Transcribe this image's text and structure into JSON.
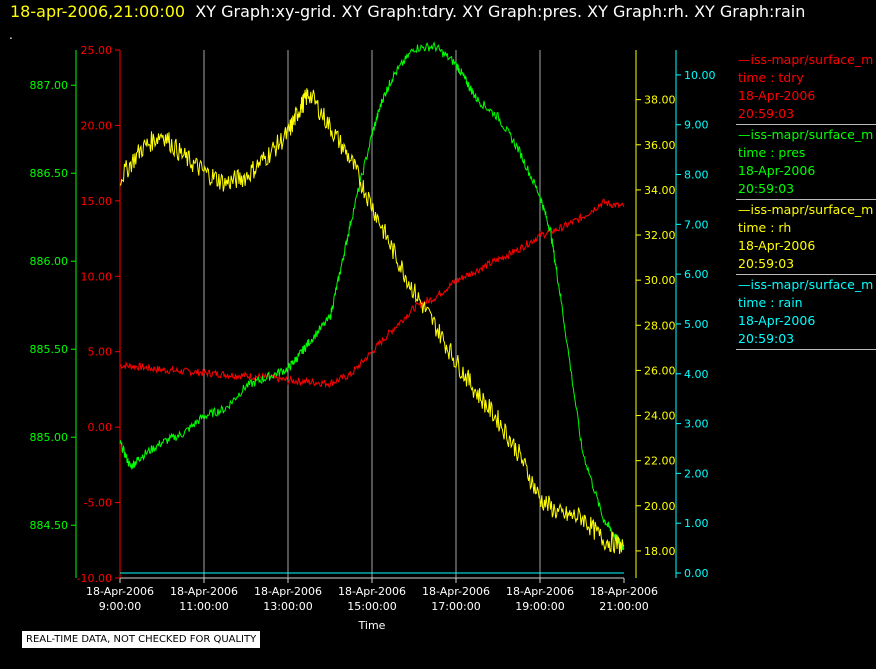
{
  "header": {
    "timestamp": "18-apr-2006,21:00:00",
    "graphs": "XY Graph:xy-grid.  XY Graph:tdry.  XY Graph:pres.  XY Graph:rh.  XY Graph:rain",
    "dot": "."
  },
  "colors": {
    "tdry": "#ff0000",
    "pres": "#00ff00",
    "rh": "#ffff00",
    "rain": "#00ffff",
    "grid": "#d0d0d0"
  },
  "legend": [
    {
      "series": "—iss-mapr/surface_m",
      "var": "time : tdry",
      "date": "18-Apr-2006",
      "time": "20:59:03",
      "color": "#ff0000"
    },
    {
      "series": "—iss-mapr/surface_m",
      "var": "time : pres",
      "date": "18-Apr-2006",
      "time": "20:59:03",
      "color": "#00ff00"
    },
    {
      "series": "—iss-mapr/surface_m",
      "var": "time : rh",
      "date": "18-Apr-2006",
      "time": "20:59:03",
      "color": "#ffff00"
    },
    {
      "series": "—iss-mapr/surface_m",
      "var": "time : rain",
      "date": "18-Apr-2006",
      "time": "20:59:03",
      "color": "#00ffff"
    }
  ],
  "footer_note": "REAL-TIME DATA, NOT CHECKED FOR QUALITY",
  "chart_data": {
    "type": "line",
    "xlabel": "Time",
    "x_ticks": [
      [
        "18-Apr-2006",
        "9:00:00"
      ],
      [
        "18-Apr-2006",
        "11:00:00"
      ],
      [
        "18-Apr-2006",
        "13:00:00"
      ],
      [
        "18-Apr-2006",
        "15:00:00"
      ],
      [
        "18-Apr-2006",
        "17:00:00"
      ],
      [
        "18-Apr-2006",
        "19:00:00"
      ],
      [
        "18-Apr-2006",
        "21:00:00"
      ]
    ],
    "x_range_hours": [
      9,
      21
    ],
    "axes": {
      "pres": {
        "ticks": [
          "884.50",
          "885.00",
          "885.50",
          "886.00",
          "886.50",
          "887.00"
        ],
        "range": [
          884.2,
          887.2
        ]
      },
      "tdry": {
        "ticks": [
          "-10.00",
          "-5.00",
          "0.00",
          "5.00",
          "10.00",
          "15.00",
          "20.00",
          "25.00"
        ],
        "range": [
          -10,
          25
        ]
      },
      "rh": {
        "ticks": [
          "18.00",
          "20.00",
          "22.00",
          "24.00",
          "26.00",
          "28.00",
          "30.00",
          "32.00",
          "34.00",
          "36.00",
          "38.00"
        ],
        "range": [
          16.8,
          40.2
        ]
      },
      "rain": {
        "ticks": [
          "0.00",
          "1.00",
          "2.00",
          "3.00",
          "4.00",
          "5.00",
          "6.00",
          "7.00",
          "8.00",
          "9.00",
          "10.00"
        ],
        "range": [
          -0.1,
          10.5
        ]
      }
    },
    "series": [
      {
        "name": "tdry",
        "axis": "tdry",
        "x": [
          9,
          9.5,
          10,
          10.5,
          11,
          11.5,
          12,
          12.5,
          13,
          13.5,
          14,
          14.5,
          15,
          15.5,
          16,
          16.5,
          17,
          17.5,
          18,
          18.5,
          19,
          19.5,
          20,
          20.5,
          21
        ],
        "y": [
          4.1,
          4.0,
          3.8,
          3.7,
          3.6,
          3.5,
          3.4,
          3.3,
          3.1,
          3.0,
          2.9,
          3.5,
          5.0,
          6.5,
          7.9,
          8.6,
          9.7,
          10.4,
          11.1,
          11.8,
          12.7,
          13.2,
          13.9,
          14.9,
          14.6
        ]
      },
      {
        "name": "pres",
        "axis": "pres",
        "x": [
          9,
          9.25,
          9.5,
          10,
          10.5,
          11,
          11.5,
          12,
          12.5,
          13,
          13.25,
          13.5,
          14,
          14.25,
          14.5,
          15,
          15.25,
          15.5,
          16,
          16.5,
          17,
          17.25,
          17.5,
          18,
          18.5,
          19,
          19.25,
          19.5,
          20,
          20.5,
          20.75,
          21
        ],
        "y": [
          884.97,
          884.83,
          884.89,
          884.97,
          885.02,
          885.12,
          885.16,
          885.29,
          885.34,
          885.39,
          885.46,
          885.54,
          885.68,
          885.95,
          886.23,
          886.72,
          886.92,
          887.05,
          887.21,
          887.22,
          887.12,
          887.02,
          886.92,
          886.82,
          886.63,
          886.37,
          886.17,
          885.78,
          884.93,
          884.54,
          884.45,
          884.37
        ]
      },
      {
        "name": "rh",
        "axis": "rh",
        "x": [
          9,
          9.5,
          10,
          10.5,
          11,
          11.5,
          12,
          12.5,
          13,
          13.25,
          13.5,
          14,
          14.5,
          15,
          15.5,
          16,
          16.5,
          17,
          17.5,
          18,
          18.5,
          19,
          19.5,
          20,
          20.5,
          21
        ],
        "y": [
          34.5,
          35.8,
          36.5,
          35.5,
          34.8,
          34.3,
          34.6,
          35.5,
          36.5,
          37.5,
          38.3,
          36.8,
          35.3,
          33.3,
          31.3,
          29.5,
          28.0,
          26.4,
          25.0,
          23.8,
          22.3,
          20.3,
          19.6,
          19.5,
          18.5,
          18.2
        ]
      },
      {
        "name": "rain",
        "axis": "rain",
        "x": [
          9,
          21
        ],
        "y": [
          0,
          0
        ]
      }
    ]
  }
}
